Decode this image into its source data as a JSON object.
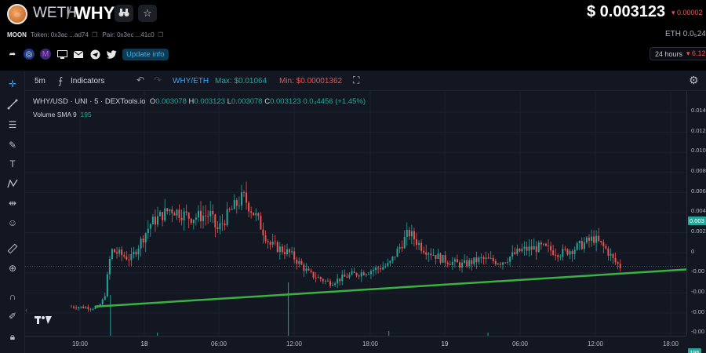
{
  "header": {
    "pair_base": "WETH",
    "pair_separator": "/",
    "pair_token": "WHY",
    "token_label": "MOON",
    "token_address": "Token: 0x3ac ...ad74",
    "pair_address": "Pair: 0x3ec ...41c0",
    "update_info": "Update info",
    "price": "$ 0.003123",
    "price_change": "▾ 0.00002",
    "eth_price": "ETH 0.0₅24",
    "period_label": "24 hours",
    "period_change": "▾ 6.12"
  },
  "toolbar": {
    "interval": "5m",
    "indicators": "Indicators",
    "pair_label": "WHY/ETH",
    "max_label": "Max: $0.01064",
    "min_label": "Min: $0.00001362"
  },
  "legend": {
    "symbol": "WHY/USD · UNI · 5 · DEXTools.io",
    "o_label": "O",
    "o_value": "0.003078",
    "h_label": "H",
    "h_value": "0.003123",
    "l_label": "L",
    "l_value": "0.003078",
    "c_label": "C",
    "c_value": "0.003123",
    "change": "0.0₄4456 (+1.45%)",
    "volume_label": "Volume SMA 9",
    "volume_value": "195"
  },
  "axes": {
    "y_ticks": [
      "0.014",
      "0.012",
      "0.010",
      "0.008",
      "0.006",
      "0.004",
      "0.002",
      "0",
      "-0.00",
      "-0.00",
      "-0.00",
      "-0.00"
    ],
    "last_price_tag": "0.003",
    "volume_tag": "195",
    "x_ticks": [
      "19:00",
      "18",
      "06:00",
      "12:00",
      "18:00",
      "19",
      "06:00",
      "12:00",
      "18:00"
    ]
  },
  "chart_data": {
    "type": "candlestick",
    "ylim": [
      -0.0004,
      0.0145
    ],
    "last_price": 0.003123,
    "trendline": [
      {
        "t": 0.105,
        "y": 0.0004
      },
      {
        "t": 1.0,
        "y": 0.0029
      }
    ],
    "colors": {
      "up": "#26a69a",
      "down": "#ef5350",
      "trend": "#3cb043",
      "volume": "#26a69a"
    }
  },
  "colors": {
    "background": "#131722",
    "accent": "#2ea6ff",
    "up": "#26a69a",
    "down": "#ef5350"
  }
}
